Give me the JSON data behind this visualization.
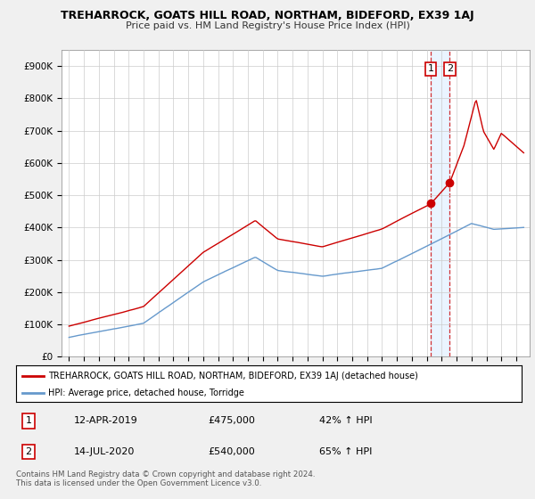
{
  "title": "TREHARROCK, GOATS HILL ROAD, NORTHAM, BIDEFORD, EX39 1AJ",
  "subtitle": "Price paid vs. HM Land Registry's House Price Index (HPI)",
  "red_label": "TREHARROCK, GOATS HILL ROAD, NORTHAM, BIDEFORD, EX39 1AJ (detached house)",
  "blue_label": "HPI: Average price, detached house, Torridge",
  "annotation1": [
    "1",
    "12-APR-2019",
    "£475,000",
    "42% ↑ HPI"
  ],
  "annotation2": [
    "2",
    "14-JUL-2020",
    "£540,000",
    "65% ↑ HPI"
  ],
  "footer": "Contains HM Land Registry data © Crown copyright and database right 2024.\nThis data is licensed under the Open Government Licence v3.0.",
  "ylim": [
    0,
    950000
  ],
  "yticks": [
    0,
    100000,
    200000,
    300000,
    400000,
    500000,
    600000,
    700000,
    800000,
    900000
  ],
  "ytick_labels": [
    "£0",
    "£100K",
    "£200K",
    "£300K",
    "£400K",
    "£500K",
    "£600K",
    "£700K",
    "£800K",
    "£900K"
  ],
  "sale1_x": 2019.27,
  "sale1_y": 475000,
  "sale2_x": 2020.54,
  "sale2_y": 540000,
  "vline1_x": 2019.27,
  "vline2_x": 2020.54,
  "red_color": "#cc0000",
  "blue_color": "#6699cc",
  "marker_color": "#cc0000",
  "vline_color": "#cc0000",
  "grid_color": "#cccccc",
  "bg_color": "#ffffff",
  "fig_bg": "#f0f0f0",
  "shade_color": "#ddeeff",
  "xlim_left": 1994.5,
  "xlim_right": 2025.9
}
